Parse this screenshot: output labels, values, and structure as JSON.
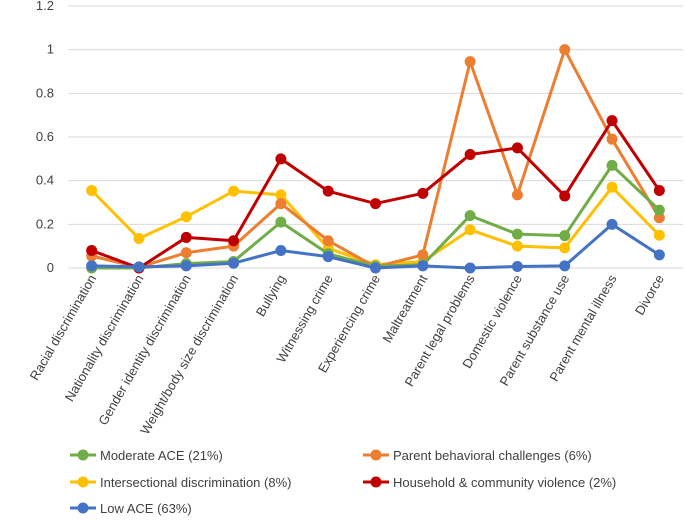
{
  "chart_data": {
    "type": "line",
    "title": "",
    "xlabel": "",
    "ylabel": "",
    "ylim": [
      0,
      1.2
    ],
    "y_ticks": [
      "0",
      "0.2",
      "0.4",
      "0.6",
      "0.8",
      "1",
      "1.2"
    ],
    "y_tick_values": [
      0,
      0.2,
      0.4,
      0.6,
      0.8,
      1.0,
      1.2
    ],
    "grid": true,
    "legend_position": "bottom",
    "categories": [
      "Racial discrimination",
      "Nationality discrimination",
      "Gender identity discrimination",
      "Weight/body size discrimination",
      "Bullying",
      "Witnessing crime",
      "Experiencing crime",
      "Maltreatment",
      "Parent legal problems",
      "Domestic violence",
      "Parent substance use",
      "Parent mental illness",
      "Divorce"
    ],
    "series": [
      {
        "name": "Intersectional discrimination (8%)",
        "color": "#FFC000",
        "values": [
          0.355,
          0.135,
          0.235,
          0.352,
          0.335,
          0.09,
          0.015,
          0.03,
          0.175,
          0.1,
          0.092,
          0.37,
          0.15
        ]
      },
      {
        "name": "Parent behavioral challenges (6%)",
        "color": "#ED7D31",
        "values": [
          0.055,
          0.003,
          0.07,
          0.1,
          0.295,
          0.125,
          0.005,
          0.06,
          0.945,
          0.335,
          1.0,
          0.59,
          0.23
        ]
      },
      {
        "name": "Moderate ACE (21%)",
        "color": "#70AD47",
        "values": [
          0.0,
          0.0,
          0.02,
          0.03,
          0.21,
          0.065,
          0.008,
          0.015,
          0.24,
          0.155,
          0.148,
          0.47,
          0.265
        ]
      },
      {
        "name": "Household & community violence (2%)",
        "color": "#C00000",
        "values": [
          0.08,
          0.0,
          0.14,
          0.125,
          0.5,
          0.352,
          0.295,
          0.342,
          0.52,
          0.55,
          0.33,
          0.675,
          0.355
        ]
      },
      {
        "name": "Low ACE (63%)",
        "color": "#4472C4",
        "values": [
          0.01,
          0.005,
          0.01,
          0.022,
          0.08,
          0.052,
          0.0,
          0.01,
          0.0,
          0.007,
          0.01,
          0.2,
          0.06
        ]
      }
    ],
    "legend": [
      {
        "name": "Moderate ACE (21%)",
        "color": "#70AD47"
      },
      {
        "name": "Parent behavioral challenges (6%)",
        "color": "#ED7D31"
      },
      {
        "name": "Intersectional discrimination (8%)",
        "color": "#FFC000"
      },
      {
        "name": "Household & community violence (2%)",
        "color": "#C00000"
      },
      {
        "name": "Low ACE (63%)",
        "color": "#4472C4"
      }
    ]
  }
}
